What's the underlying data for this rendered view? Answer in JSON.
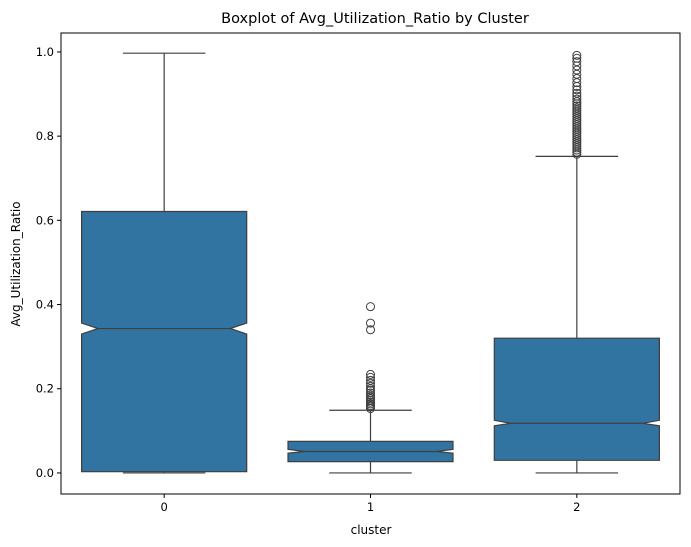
{
  "chart_data": {
    "type": "boxplot",
    "title": "Boxplot of Avg_Utilization_Ratio by Cluster",
    "xlabel": "cluster",
    "ylabel": "Avg_Utilization_Ratio",
    "categories": [
      "0",
      "1",
      "2"
    ],
    "ylim": [
      -0.05,
      1.045
    ],
    "yticks": [
      0.0,
      0.2,
      0.4,
      0.6,
      0.8,
      1.0
    ],
    "ytick_labels": [
      "0.0",
      "0.2",
      "0.4",
      "0.6",
      "0.8",
      "1.0"
    ],
    "notched": true,
    "grid": false,
    "colors": {
      "box_fill": "#3274a1",
      "line": "#3f3f3f"
    },
    "boxes": [
      {
        "category": "0",
        "whisker_low": 0.0,
        "q1": 0.003,
        "notch_low": 0.33,
        "median": 0.343,
        "notch_high": 0.356,
        "q3": 0.621,
        "whisker_high": 0.997,
        "outliers": []
      },
      {
        "category": "1",
        "whisker_low": 0.0,
        "q1": 0.027,
        "notch_low": 0.047,
        "median": 0.051,
        "notch_high": 0.056,
        "q3": 0.075,
        "whisker_high": 0.149,
        "outliers": [
          0.153,
          0.157,
          0.16,
          0.164,
          0.168,
          0.172,
          0.176,
          0.18,
          0.185,
          0.19,
          0.196,
          0.2,
          0.206,
          0.213,
          0.22,
          0.227,
          0.234,
          0.34,
          0.356,
          0.395
        ]
      },
      {
        "category": "2",
        "whisker_low": 0.0,
        "q1": 0.03,
        "notch_low": 0.112,
        "median": 0.118,
        "notch_high": 0.125,
        "q3": 0.32,
        "whisker_high": 0.752,
        "outliers": [
          0.757,
          0.762,
          0.767,
          0.772,
          0.777,
          0.782,
          0.787,
          0.792,
          0.797,
          0.802,
          0.807,
          0.812,
          0.817,
          0.822,
          0.827,
          0.832,
          0.837,
          0.842,
          0.847,
          0.852,
          0.857,
          0.862,
          0.867,
          0.872,
          0.877,
          0.882,
          0.888,
          0.895,
          0.902,
          0.91,
          0.918,
          0.927,
          0.937,
          0.947,
          0.957,
          0.967,
          0.977,
          0.985,
          0.992
        ]
      }
    ]
  }
}
